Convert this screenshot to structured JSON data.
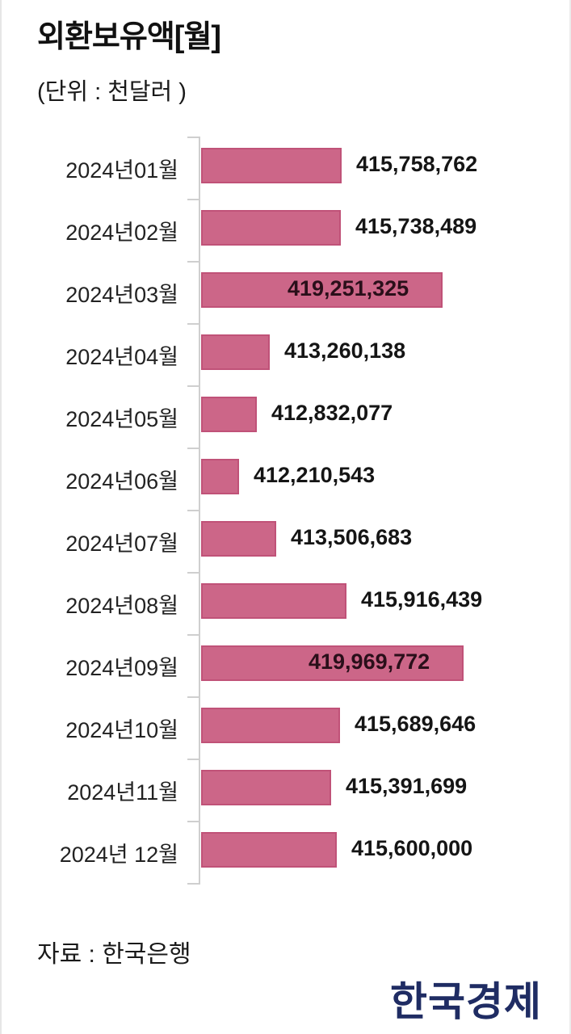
{
  "header": {
    "title": "외환보유액[월]",
    "unit": "(단위 : 천달러 )"
  },
  "footer": {
    "source": "자료 : 한국은행",
    "logo": "한국경제"
  },
  "colors": {
    "bar_fill": "#cc6688",
    "bar_border": "#c05278",
    "logo": "#1f2c63"
  },
  "rows": [
    {
      "label": "2024년01월",
      "value_text": "415,758,762"
    },
    {
      "label": "2024년02월",
      "value_text": "415,738,489"
    },
    {
      "label": "2024년03월",
      "value_text": "419,251,325"
    },
    {
      "label": "2024년04월",
      "value_text": "413,260,138"
    },
    {
      "label": "2024년05월",
      "value_text": "412,832,077"
    },
    {
      "label": "2024년06월",
      "value_text": "412,210,543"
    },
    {
      "label": "2024년07월",
      "value_text": "413,506,683"
    },
    {
      "label": "2024년08월",
      "value_text": "415,916,439"
    },
    {
      "label": "2024년09월",
      "value_text": "419,969,772"
    },
    {
      "label": "2024년10월",
      "value_text": "415,689,646"
    },
    {
      "label": "2024년11월",
      "value_text": "415,391,699"
    },
    {
      "label": "2024년 12월",
      "value_text": "415,600,000"
    }
  ],
  "chart_data": {
    "type": "bar",
    "orientation": "horizontal",
    "title": "외환보유액[월]",
    "subtitle": "(단위 : 천달러 )",
    "xlabel": "",
    "ylabel": "",
    "unit": "천달러",
    "source": "자료 : 한국은행",
    "categories": [
      "2024년01월",
      "2024년02월",
      "2024년03월",
      "2024년04월",
      "2024년05월",
      "2024년06월",
      "2024년07월",
      "2024년08월",
      "2024년09월",
      "2024년10월",
      "2024년11월",
      "2024년 12월"
    ],
    "values": [
      415758762,
      415738489,
      419251325,
      413260138,
      412832077,
      412210543,
      413506683,
      415916439,
      419969772,
      415689646,
      415391699,
      415600000
    ],
    "xlim": [
      410900000,
      420700000
    ],
    "grid": false,
    "legend": null,
    "data_labels": true
  }
}
